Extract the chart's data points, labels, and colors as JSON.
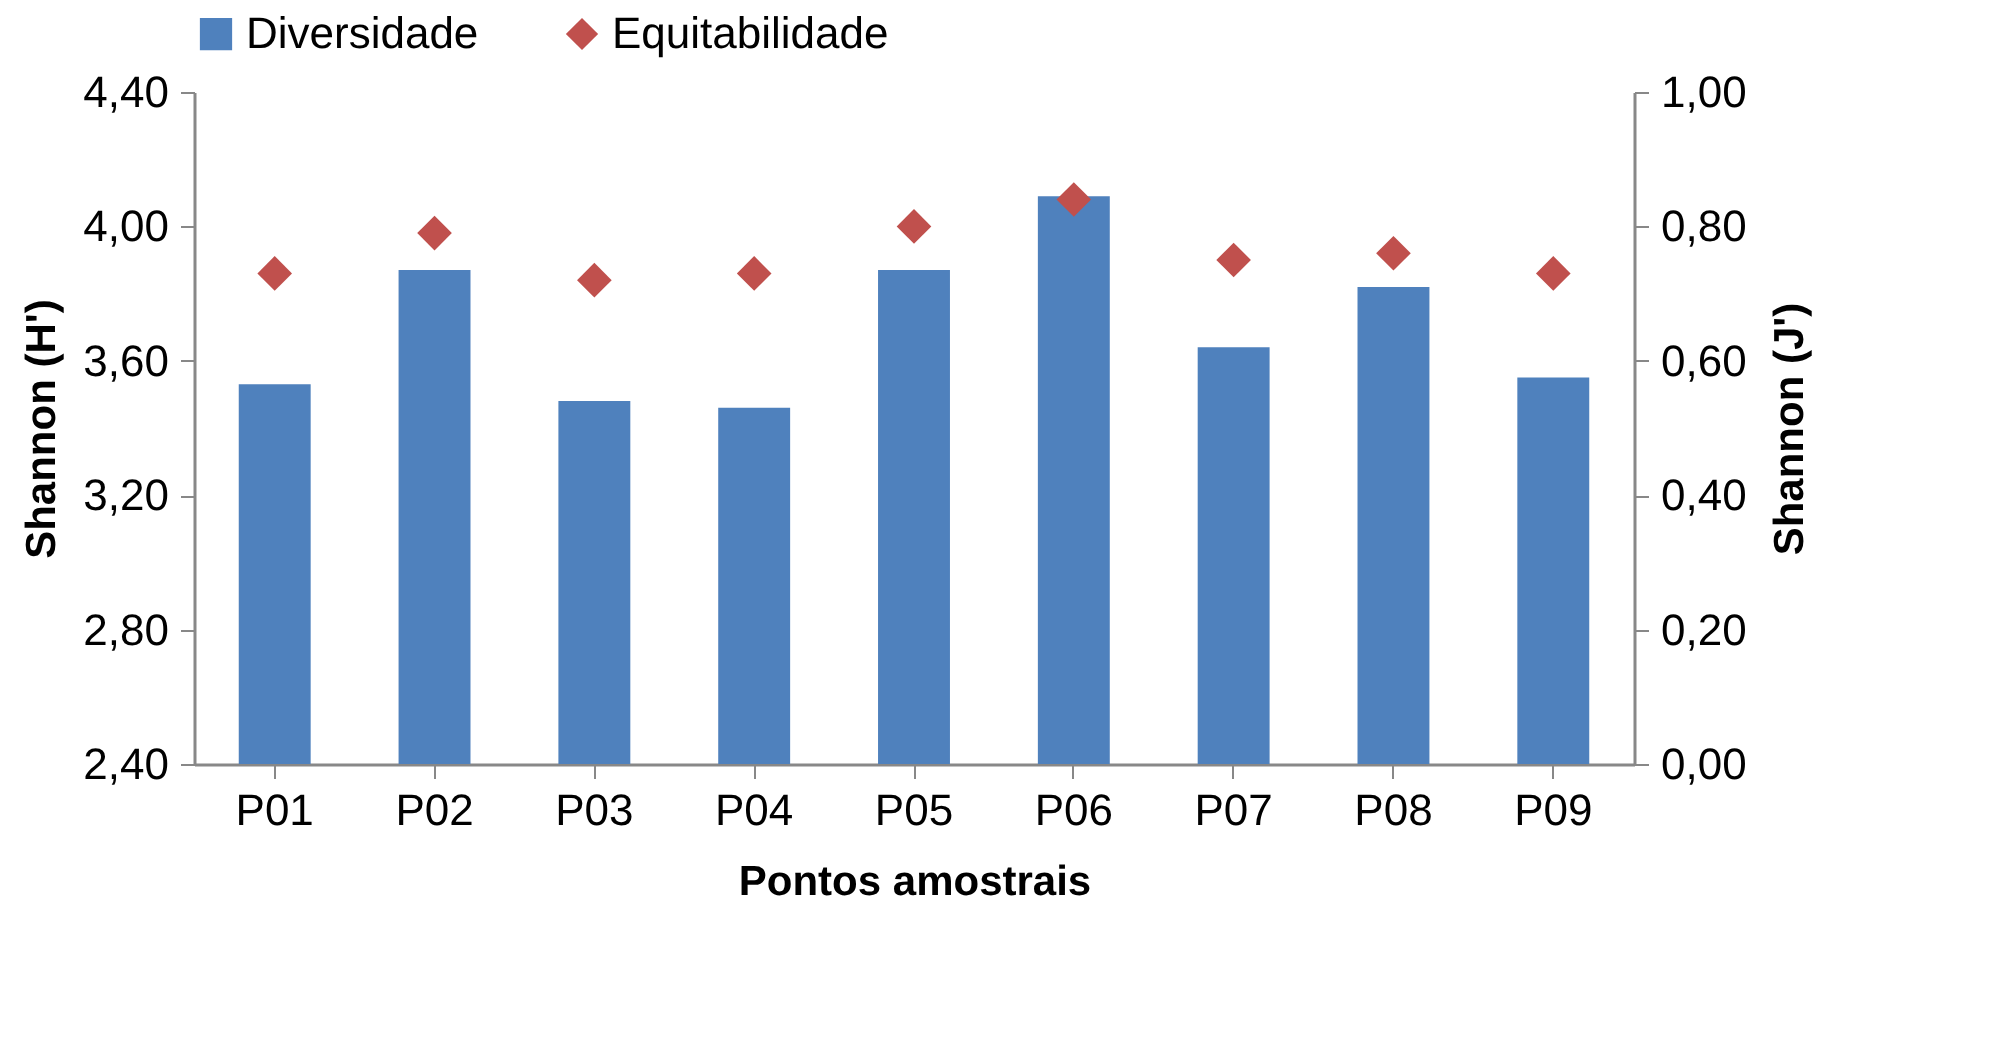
{
  "chart_data": {
    "type": "bar",
    "xlabel": "Pontos amostrais",
    "ylabel": "Shannon (H')",
    "y2label": "Shannon (J')",
    "categories": [
      "P01",
      "P02",
      "P03",
      "P04",
      "P05",
      "P06",
      "P07",
      "P08",
      "P09"
    ],
    "series": [
      {
        "name": "Diversidade",
        "type": "bar",
        "color": "#4f81bd",
        "values": [
          3.53,
          3.87,
          3.48,
          3.46,
          3.87,
          4.09,
          3.64,
          3.82,
          3.55
        ]
      },
      {
        "name": "Equitabilidade",
        "type": "scatter",
        "axis": "y2",
        "marker": "diamond",
        "color": "#c0504d",
        "values": [
          0.73,
          0.79,
          0.72,
          0.73,
          0.8,
          0.84,
          0.75,
          0.76,
          0.73
        ]
      }
    ],
    "ylim": [
      2.4,
      4.4
    ],
    "yticks": [
      {
        "value": 2.4,
        "label": "2,40"
      },
      {
        "value": 2.8,
        "label": "2,80"
      },
      {
        "value": 3.2,
        "label": "3,20"
      },
      {
        "value": 3.6,
        "label": "3,60"
      },
      {
        "value": 4.0,
        "label": "4,00"
      },
      {
        "value": 4.4,
        "label": "4,40"
      }
    ],
    "y2lim": [
      0,
      1
    ],
    "y2ticks": [
      {
        "value": 0,
        "label": "0,00"
      },
      {
        "value": 0.2,
        "label": "0,20"
      },
      {
        "value": 0.4,
        "label": "0,40"
      },
      {
        "value": 0.6,
        "label": "0,60"
      },
      {
        "value": 0.8,
        "label": "0,80"
      },
      {
        "value": 1,
        "label": "1,00"
      }
    ],
    "grid": false,
    "legend": "top"
  }
}
